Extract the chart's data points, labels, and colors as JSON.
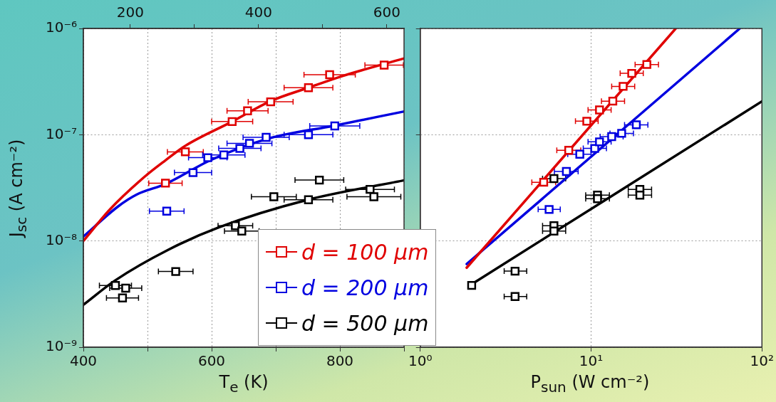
{
  "chart_data": [
    {
      "type": "scatter",
      "xlabel": "T$_{e}$ (K)",
      "ylabel": "J$_{sc}$ (A cm⁻²)",
      "xlim": [
        400,
        900
      ],
      "xticks": [
        400,
        {
          "value": 500,
          "label": null
        },
        600,
        {
          "value": 700,
          "label": null
        },
        800,
        {
          "value": 900,
          "label": null
        }
      ],
      "x2lim": [
        126.85,
        626.85
      ],
      "x2ticks": [
        200,
        {
          "value": 300,
          "label": null
        },
        400,
        {
          "value": 500,
          "label": null
        },
        600
      ],
      "ylim": [
        1e-09,
        1e-06
      ],
      "yticks": [
        {
          "value": 1e-09,
          "label": "10⁻⁹"
        },
        {
          "value": 1e-08,
          "label": "10⁻⁸"
        },
        {
          "value": 1e-07,
          "label": "10⁻⁷"
        },
        {
          "value": 1e-06,
          "label": "10⁻⁶"
        }
      ],
      "log": "y",
      "grid": true,
      "legend": "bottom right",
      "marker": "square",
      "series": [
        {
          "type": "scatter",
          "name": "d = 100 μm",
          "color": "#e00000",
          "x": [
            528,
            559,
            632,
            656,
            692,
            751,
            784,
            869
          ],
          "values": [
            3.5e-08,
            6.9e-08,
            1.33e-07,
            1.68e-07,
            2.04e-07,
            2.77e-07,
            3.67e-07,
            4.52e-07
          ],
          "xerrors": [
            26,
            28,
            32,
            32,
            35,
            38,
            40,
            30
          ]
        },
        {
          "type": "scatter",
          "name": "d = 200 μm",
          "color": "#0000e0",
          "x": [
            530,
            571,
            594,
            619,
            644,
            659,
            685,
            751,
            792
          ],
          "values": [
            1.91e-08,
            4.4e-08,
            6.08e-08,
            6.45e-08,
            7.43e-08,
            8.3e-08,
            9.44e-08,
            1e-07,
            1.21e-07
          ],
          "xerrors": [
            27,
            29,
            30,
            33,
            33,
            35,
            36,
            38,
            39
          ]
        },
        {
          "type": "scatter",
          "name": "d = 500 μm",
          "color": "#000000",
          "x": [
            450,
            466,
            461,
            544,
            637,
            647,
            697,
            751,
            768,
            847,
            853
          ],
          "values": [
            3.81e-09,
            3.6e-09,
            2.91e-09,
            5.16e-09,
            1.39e-08,
            1.24e-08,
            2.61e-08,
            2.44e-08,
            3.74e-08,
            3.06e-08,
            2.61e-08
          ],
          "xerrors": [
            25,
            25,
            25,
            27,
            27,
            27,
            35,
            38,
            38,
            38,
            42
          ]
        },
        {
          "type": "line",
          "color": "#e00000",
          "marker": "none",
          "x": [
            400,
            442,
            495,
            528,
            559,
            632,
            692,
            751,
            804,
            899
          ],
          "values": [
            1e-08,
            2e-08,
            4e-08,
            5.74e-08,
            7.87e-08,
            1.33e-07,
            2.07e-07,
            2.77e-07,
            3.57e-07,
            5.2e-07
          ]
        },
        {
          "type": "line",
          "color": "#0000e0",
          "marker": "none",
          "x": [
            400,
            454,
            483,
            528,
            598,
            685,
            792,
            899
          ],
          "values": [
            1.1e-08,
            2.11e-08,
            2.73e-08,
            3.44e-08,
            5.75e-08,
            9.08e-08,
            1.22e-07,
            1.65e-07
          ]
        },
        {
          "type": "line",
          "color": "#000000",
          "marker": "none",
          "x": [
            400,
            450,
            532,
            611,
            750,
            899
          ],
          "values": [
            2.51e-09,
            4.27e-09,
            8.24e-09,
            1.34e-08,
            2.44e-08,
            3.71e-08
          ]
        }
      ]
    },
    {
      "type": "scatter",
      "xlabel": "P$_{sun}$ (W cm⁻²)",
      "xlim": [
        1,
        100
      ],
      "xticks": [
        {
          "value": 1,
          "label": "10⁰"
        },
        {
          "value": 10,
          "label": "10¹"
        },
        {
          "value": 100,
          "label": "10²"
        }
      ],
      "ylim": [
        1e-09,
        1e-06
      ],
      "yticks": [
        {
          "value": 1e-09,
          "label": null
        },
        {
          "value": 1e-08,
          "label": null
        },
        {
          "value": 1e-07,
          "label": null
        },
        {
          "value": 1e-06,
          "label": null
        }
      ],
      "log": "xy",
      "grid": true,
      "tick_labels": "x",
      "marker": "square",
      "series": [
        {
          "type": "scatter",
          "color": "#e00000",
          "x": [
            5.28,
            7.4,
            9.44,
            11.2,
            13.4,
            15.4,
            17.3,
            21.2
          ],
          "values": [
            3.57e-08,
            7.13e-08,
            1.34e-07,
            1.71e-07,
            2.07e-07,
            2.85e-07,
            3.78e-07,
            4.58e-07
          ],
          "xerrors": [
            [
              4.5,
              6.2
            ],
            [
              6.3,
              8.7
            ],
            [
              8.1,
              11.0
            ],
            [
              9.6,
              13.1
            ],
            [
              11.5,
              15.7
            ],
            [
              13.2,
              18.0
            ],
            [
              14.8,
              20.2
            ],
            [
              18.1,
              24.8
            ]
          ]
        },
        {
          "type": "scatter",
          "color": "#0000e0",
          "x": [
            5.68,
            7.17,
            8.59,
            10.5,
            11.2,
            13.2,
            15.1,
            18.4
          ],
          "values": [
            1.98e-08,
            4.51e-08,
            6.56e-08,
            7.43e-08,
            8.57e-08,
            9.6e-08,
            1.03e-07,
            1.24e-07
          ],
          "xerrors": [
            [
              4.9,
              6.6
            ],
            [
              6.1,
              8.4
            ],
            [
              7.3,
              10.0
            ],
            [
              9.0,
              12.3
            ],
            [
              9.6,
              13.1
            ],
            [
              11.3,
              15.4
            ],
            [
              12.9,
              17.7
            ],
            [
              15.7,
              21.5
            ]
          ]
        },
        {
          "type": "scatter",
          "color": "#000000",
          "x": [
            2.0,
            3.59,
            3.59,
            6.06,
            6.06,
            6.06,
            10.9,
            10.9,
            19.3,
            19.3
          ],
          "values": [
            3.82e-09,
            5.2e-09,
            3e-09,
            1.39e-08,
            1.24e-08,
            3.86e-08,
            2.7e-08,
            2.5e-08,
            3.06e-08,
            2.7e-08
          ],
          "xerrors": [
            null,
            [
              3.1,
              4.2
            ],
            [
              3.1,
              4.2
            ],
            [
              5.2,
              7.1
            ],
            [
              5.2,
              7.1
            ],
            [
              5.2,
              7.1
            ],
            [
              9.3,
              12.8
            ],
            [
              9.3,
              12.8
            ],
            [
              16.5,
              22.6
            ],
            [
              16.5,
              22.6
            ]
          ]
        },
        {
          "type": "line",
          "color": "#e00000",
          "marker": "none",
          "x": [
            1.87,
            31.3
          ],
          "values": [
            5.6e-09,
            1e-06
          ]
        },
        {
          "type": "line",
          "color": "#0000e0",
          "marker": "none",
          "x": [
            1.87,
            74.2
          ],
          "values": [
            6.07e-09,
            1e-06
          ]
        },
        {
          "type": "line",
          "color": "#000000",
          "marker": "none",
          "x": [
            2.0,
            100
          ],
          "values": [
            3.92e-09,
            2.06e-07
          ]
        }
      ]
    }
  ]
}
